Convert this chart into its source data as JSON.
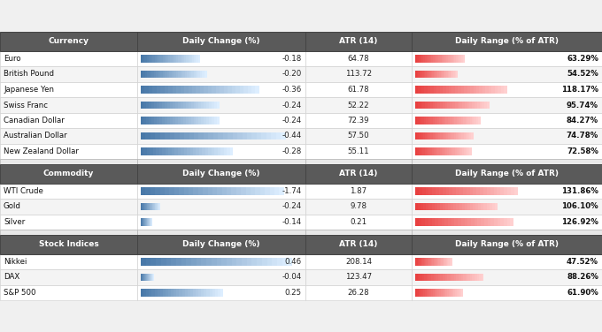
{
  "sections": [
    {
      "header": "Currency",
      "rows": [
        {
          "name": "Euro",
          "daily_change": -0.18,
          "atr": 64.78,
          "daily_range": 63.29
        },
        {
          "name": "British Pound",
          "daily_change": -0.2,
          "atr": 113.72,
          "daily_range": 54.52
        },
        {
          "name": "Japanese Yen",
          "daily_change": -0.36,
          "atr": 61.78,
          "daily_range": 118.17
        },
        {
          "name": "Swiss Franc",
          "daily_change": -0.24,
          "atr": 52.22,
          "daily_range": 95.74
        },
        {
          "name": "Canadian Dollar",
          "daily_change": -0.24,
          "atr": 72.39,
          "daily_range": 84.27
        },
        {
          "name": "Australian Dollar",
          "daily_change": -0.44,
          "atr": 57.5,
          "daily_range": 74.78
        },
        {
          "name": "New Zealand Dollar",
          "daily_change": -0.28,
          "atr": 55.11,
          "daily_range": 72.58
        }
      ],
      "blue_bar_max": 0.5
    },
    {
      "header": "Commodity",
      "rows": [
        {
          "name": "WTI Crude",
          "daily_change": -1.74,
          "atr": 1.87,
          "daily_range": 131.86
        },
        {
          "name": "Gold",
          "daily_change": -0.24,
          "atr": 9.78,
          "daily_range": 106.1
        },
        {
          "name": "Silver",
          "daily_change": -0.14,
          "atr": 0.21,
          "daily_range": 126.92
        }
      ],
      "blue_bar_max": 2.0
    },
    {
      "header": "Stock Indices",
      "rows": [
        {
          "name": "Nikkei",
          "daily_change": 0.46,
          "atr": 208.14,
          "daily_range": 47.52
        },
        {
          "name": "DAX",
          "daily_change": -0.04,
          "atr": 123.47,
          "daily_range": 88.26
        },
        {
          "name": "S&P 500",
          "daily_change": 0.25,
          "atr": 26.28,
          "daily_range": 61.9
        }
      ],
      "blue_bar_max": 0.5
    }
  ],
  "header_bg": "#5a5a5a",
  "header_fg": "#ffffff",
  "border_color": "#aaaaaa",
  "section_gap_color": "#dddddd",
  "blue_dark": "#4878a8",
  "blue_light": "#ddeeff",
  "red_dark": "#e84040",
  "red_light": "#ffd0d0",
  "red_bar_max": 135.0,
  "fig_width": 6.8,
  "fig_height": 3.76,
  "dpi": 100
}
